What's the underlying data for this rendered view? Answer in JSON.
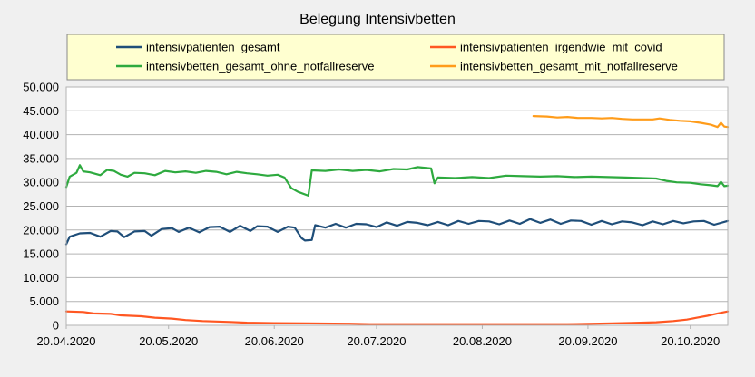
{
  "chart_data": {
    "type": "line",
    "title": "Belegung Intensivbetten",
    "xlabel": "",
    "ylabel": "",
    "grid": true,
    "legend_placement": "top",
    "ylim": [
      0,
      50000
    ],
    "yticks": [
      0,
      5000,
      10000,
      15000,
      20000,
      25000,
      30000,
      35000,
      40000,
      45000,
      50000
    ],
    "ytick_labels": [
      "0",
      "5.000",
      "10.000",
      "15.000",
      "20.000",
      "25.000",
      "30.000",
      "35.000",
      "40.000",
      "45.000",
      "50.000"
    ],
    "xlim": [
      "2020-04-20",
      "2020-10-31"
    ],
    "xticks": [
      "2020-04-20",
      "2020-05-20",
      "2020-06-20",
      "2020-07-20",
      "2020-08-20",
      "2020-09-20",
      "2020-10-20"
    ],
    "xtick_labels": [
      "20.04.2020",
      "20.05.2020",
      "20.06.2020",
      "20.07.2020",
      "20.08.2020",
      "20.09.2020",
      "20.10.2020"
    ],
    "series": [
      {
        "name": "intensivpatienten_gesamt",
        "color": "#1f4e79",
        "points": [
          [
            "2020-04-20",
            17000
          ],
          [
            "2020-04-21",
            18600
          ],
          [
            "2020-04-24",
            19300
          ],
          [
            "2020-04-27",
            19400
          ],
          [
            "2020-04-30",
            18600
          ],
          [
            "2020-05-03",
            19800
          ],
          [
            "2020-05-05",
            19700
          ],
          [
            "2020-05-07",
            18500
          ],
          [
            "2020-05-10",
            19700
          ],
          [
            "2020-05-13",
            19800
          ],
          [
            "2020-05-15",
            18800
          ],
          [
            "2020-05-18",
            20200
          ],
          [
            "2020-05-21",
            20400
          ],
          [
            "2020-05-23",
            19600
          ],
          [
            "2020-05-26",
            20500
          ],
          [
            "2020-05-29",
            19500
          ],
          [
            "2020-06-01",
            20600
          ],
          [
            "2020-06-04",
            20700
          ],
          [
            "2020-06-07",
            19600
          ],
          [
            "2020-06-10",
            20900
          ],
          [
            "2020-06-13",
            19800
          ],
          [
            "2020-06-15",
            20800
          ],
          [
            "2020-06-18",
            20700
          ],
          [
            "2020-06-21",
            19600
          ],
          [
            "2020-06-24",
            20700
          ],
          [
            "2020-06-26",
            20500
          ],
          [
            "2020-06-28",
            18300
          ],
          [
            "2020-06-29",
            17800
          ],
          [
            "2020-07-01",
            17900
          ],
          [
            "2020-07-02",
            21000
          ],
          [
            "2020-07-05",
            20500
          ],
          [
            "2020-07-08",
            21300
          ],
          [
            "2020-07-11",
            20500
          ],
          [
            "2020-07-14",
            21300
          ],
          [
            "2020-07-17",
            21200
          ],
          [
            "2020-07-20",
            20600
          ],
          [
            "2020-07-23",
            21600
          ],
          [
            "2020-07-26",
            20900
          ],
          [
            "2020-07-29",
            21700
          ],
          [
            "2020-08-01",
            21500
          ],
          [
            "2020-08-04",
            21000
          ],
          [
            "2020-08-07",
            21700
          ],
          [
            "2020-08-10",
            21000
          ],
          [
            "2020-08-13",
            21900
          ],
          [
            "2020-08-16",
            21300
          ],
          [
            "2020-08-19",
            21900
          ],
          [
            "2020-08-22",
            21800
          ],
          [
            "2020-08-25",
            21200
          ],
          [
            "2020-08-28",
            22000
          ],
          [
            "2020-08-31",
            21300
          ],
          [
            "2020-09-03",
            22300
          ],
          [
            "2020-09-06",
            21500
          ],
          [
            "2020-09-09",
            22200
          ],
          [
            "2020-09-12",
            21300
          ],
          [
            "2020-09-15",
            22000
          ],
          [
            "2020-09-18",
            21900
          ],
          [
            "2020-09-21",
            21100
          ],
          [
            "2020-09-24",
            21900
          ],
          [
            "2020-09-27",
            21200
          ],
          [
            "2020-09-30",
            21800
          ],
          [
            "2020-10-03",
            21600
          ],
          [
            "2020-10-06",
            21000
          ],
          [
            "2020-10-09",
            21800
          ],
          [
            "2020-10-12",
            21200
          ],
          [
            "2020-10-15",
            21900
          ],
          [
            "2020-10-18",
            21400
          ],
          [
            "2020-10-21",
            21800
          ],
          [
            "2020-10-24",
            21900
          ],
          [
            "2020-10-27",
            21100
          ],
          [
            "2020-10-31",
            21900
          ]
        ]
      },
      {
        "name": "intensivpatienten_irgendwie_mit_covid",
        "color": "#ff5722",
        "points": [
          [
            "2020-04-20",
            2900
          ],
          [
            "2020-04-25",
            2800
          ],
          [
            "2020-04-28",
            2500
          ],
          [
            "2020-05-03",
            2400
          ],
          [
            "2020-05-06",
            2100
          ],
          [
            "2020-05-12",
            1900
          ],
          [
            "2020-05-16",
            1600
          ],
          [
            "2020-05-21",
            1400
          ],
          [
            "2020-05-25",
            1100
          ],
          [
            "2020-05-30",
            900
          ],
          [
            "2020-06-07",
            700
          ],
          [
            "2020-06-12",
            550
          ],
          [
            "2020-06-20",
            450
          ],
          [
            "2020-06-30",
            400
          ],
          [
            "2020-07-12",
            350
          ],
          [
            "2020-07-18",
            250
          ],
          [
            "2020-08-01",
            250
          ],
          [
            "2020-08-15",
            250
          ],
          [
            "2020-08-31",
            250
          ],
          [
            "2020-09-14",
            250
          ],
          [
            "2020-09-20",
            300
          ],
          [
            "2020-09-27",
            400
          ],
          [
            "2020-10-03",
            500
          ],
          [
            "2020-10-10",
            650
          ],
          [
            "2020-10-15",
            900
          ],
          [
            "2020-10-19",
            1200
          ],
          [
            "2020-10-22",
            1600
          ],
          [
            "2020-10-25",
            2000
          ],
          [
            "2020-10-28",
            2500
          ],
          [
            "2020-10-31",
            2900
          ]
        ]
      },
      {
        "name": "intensivbetten_gesamt_ohne_notfallreserve",
        "color": "#2eaa3f",
        "points": [
          [
            "2020-04-20",
            29000
          ],
          [
            "2020-04-21",
            31200
          ],
          [
            "2020-04-23",
            32000
          ],
          [
            "2020-04-24",
            33600
          ],
          [
            "2020-04-25",
            32300
          ],
          [
            "2020-04-27",
            32100
          ],
          [
            "2020-04-30",
            31500
          ],
          [
            "2020-05-02",
            32600
          ],
          [
            "2020-05-04",
            32400
          ],
          [
            "2020-05-06",
            31600
          ],
          [
            "2020-05-08",
            31200
          ],
          [
            "2020-05-10",
            32000
          ],
          [
            "2020-05-13",
            31900
          ],
          [
            "2020-05-16",
            31500
          ],
          [
            "2020-05-19",
            32400
          ],
          [
            "2020-05-22",
            32100
          ],
          [
            "2020-05-25",
            32300
          ],
          [
            "2020-05-28",
            32000
          ],
          [
            "2020-05-31",
            32400
          ],
          [
            "2020-06-03",
            32200
          ],
          [
            "2020-06-06",
            31700
          ],
          [
            "2020-06-09",
            32200
          ],
          [
            "2020-06-12",
            31900
          ],
          [
            "2020-06-15",
            31700
          ],
          [
            "2020-06-18",
            31400
          ],
          [
            "2020-06-21",
            31600
          ],
          [
            "2020-06-23",
            31000
          ],
          [
            "2020-06-25",
            28800
          ],
          [
            "2020-06-27",
            28000
          ],
          [
            "2020-06-30",
            27200
          ],
          [
            "2020-07-01",
            32500
          ],
          [
            "2020-07-05",
            32400
          ],
          [
            "2020-07-09",
            32700
          ],
          [
            "2020-07-13",
            32400
          ],
          [
            "2020-07-17",
            32600
          ],
          [
            "2020-07-21",
            32300
          ],
          [
            "2020-07-25",
            32800
          ],
          [
            "2020-07-29",
            32700
          ],
          [
            "2020-08-01",
            33200
          ],
          [
            "2020-08-05",
            32900
          ],
          [
            "2020-08-06",
            29800
          ],
          [
            "2020-08-07",
            31000
          ],
          [
            "2020-08-12",
            30900
          ],
          [
            "2020-08-17",
            31100
          ],
          [
            "2020-08-22",
            30900
          ],
          [
            "2020-08-27",
            31400
          ],
          [
            "2020-09-01",
            31300
          ],
          [
            "2020-09-06",
            31200
          ],
          [
            "2020-09-11",
            31300
          ],
          [
            "2020-09-16",
            31100
          ],
          [
            "2020-09-21",
            31200
          ],
          [
            "2020-09-26",
            31100
          ],
          [
            "2020-10-01",
            31000
          ],
          [
            "2020-10-06",
            30900
          ],
          [
            "2020-10-10",
            30800
          ],
          [
            "2020-10-13",
            30300
          ],
          [
            "2020-10-16",
            30000
          ],
          [
            "2020-10-20",
            29900
          ],
          [
            "2020-10-23",
            29600
          ],
          [
            "2020-10-26",
            29400
          ],
          [
            "2020-10-28",
            29200
          ],
          [
            "2020-10-29",
            30100
          ],
          [
            "2020-10-30",
            29200
          ],
          [
            "2020-10-31",
            29300
          ]
        ]
      },
      {
        "name": "intensivbetten_gesamt_mit_notfallreserve",
        "color": "#ff9c1a",
        "points": [
          [
            "2020-09-04",
            43900
          ],
          [
            "2020-09-08",
            43800
          ],
          [
            "2020-09-11",
            43600
          ],
          [
            "2020-09-14",
            43700
          ],
          [
            "2020-09-17",
            43500
          ],
          [
            "2020-09-21",
            43500
          ],
          [
            "2020-09-24",
            43400
          ],
          [
            "2020-09-27",
            43500
          ],
          [
            "2020-09-30",
            43300
          ],
          [
            "2020-10-03",
            43200
          ],
          [
            "2020-10-06",
            43200
          ],
          [
            "2020-10-09",
            43200
          ],
          [
            "2020-10-11",
            43400
          ],
          [
            "2020-10-14",
            43100
          ],
          [
            "2020-10-17",
            42900
          ],
          [
            "2020-10-20",
            42800
          ],
          [
            "2020-10-23",
            42500
          ],
          [
            "2020-10-26",
            42100
          ],
          [
            "2020-10-28",
            41600
          ],
          [
            "2020-10-29",
            42500
          ],
          [
            "2020-10-30",
            41700
          ],
          [
            "2020-10-31",
            41600
          ]
        ]
      }
    ]
  }
}
